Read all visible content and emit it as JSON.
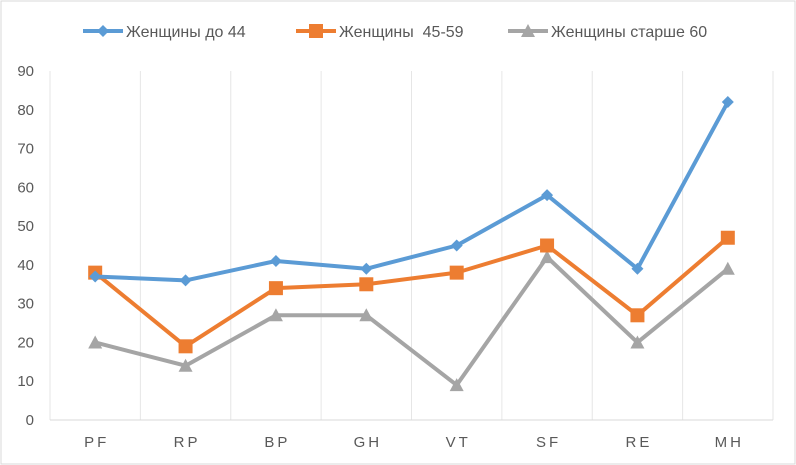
{
  "chart_data": {
    "type": "line",
    "categories": [
      "PF",
      "RP",
      "BP",
      "GH",
      "VT",
      "SF",
      "RE",
      "MH"
    ],
    "ylim": [
      0,
      90
    ],
    "yticks": [
      0,
      10,
      20,
      30,
      40,
      50,
      60,
      70,
      80,
      90
    ],
    "grid": "vertical",
    "legend_position": "top",
    "series": [
      {
        "name": "Женщины до 44",
        "color": "#5B9BD5",
        "marker": "diamond",
        "values": [
          37,
          36,
          41,
          39,
          45,
          58,
          39,
          82
        ]
      },
      {
        "name": "Женщины  45-59",
        "color": "#ED7D31",
        "marker": "square",
        "values": [
          38,
          19,
          34,
          35,
          38,
          45,
          27,
          47
        ]
      },
      {
        "name": "Женщины старше 60",
        "color": "#A5A5A5",
        "marker": "triangle",
        "values": [
          20,
          14,
          27,
          27,
          9,
          42,
          20,
          39
        ]
      }
    ]
  }
}
